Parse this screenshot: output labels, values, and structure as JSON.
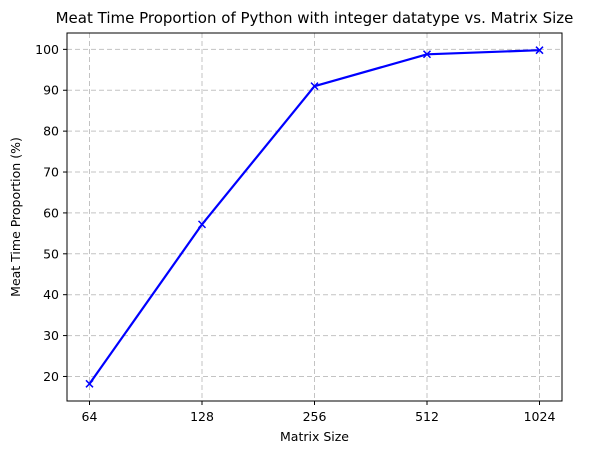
{
  "chart_data": {
    "type": "line",
    "title": "Meat Time Proportion of Python with integer datatype vs. Matrix Size",
    "xlabel": "Matrix Size",
    "ylabel": "Meat Time Proportion (%)",
    "x_scale": "log2",
    "x": [
      64,
      128,
      256,
      512,
      1024
    ],
    "x_tick_labels": [
      "64",
      "128",
      "256",
      "512",
      "1024"
    ],
    "y_ticks": [
      20,
      30,
      40,
      50,
      60,
      70,
      80,
      90,
      100
    ],
    "ylim": [
      14.0,
      104.0
    ],
    "grid": true,
    "series": [
      {
        "values": [
          18.2,
          57.2,
          91.0,
          98.8,
          99.8
        ],
        "color": "#0000ff",
        "marker": "x"
      }
    ]
  }
}
